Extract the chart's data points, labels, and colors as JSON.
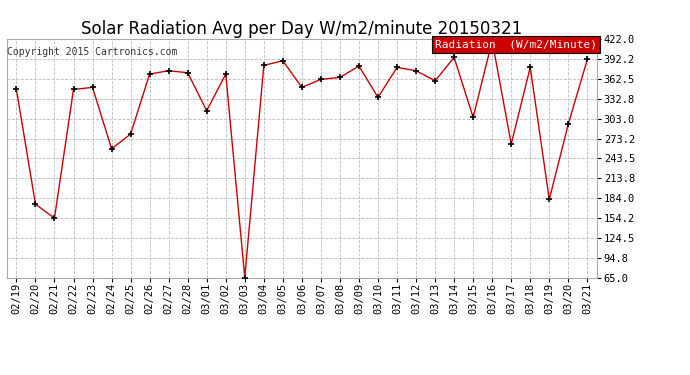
{
  "title": "Solar Radiation Avg per Day W/m2/minute 20150321",
  "copyright": "Copyright 2015 Cartronics.com",
  "legend_label": "Radiation  (W/m2/Minute)",
  "x_labels": [
    "02/19",
    "02/20",
    "02/21",
    "02/22",
    "02/23",
    "02/24",
    "02/25",
    "02/26",
    "02/27",
    "02/28",
    "03/01",
    "03/02",
    "03/03",
    "03/04",
    "03/05",
    "03/06",
    "03/07",
    "03/08",
    "03/09",
    "03/10",
    "03/11",
    "03/12",
    "03/13",
    "03/14",
    "03/15",
    "03/16",
    "03/17",
    "03/18",
    "03/19",
    "03/20",
    "03/21"
  ],
  "y_values": [
    347,
    175,
    154,
    347,
    350,
    258,
    280,
    370,
    375,
    372,
    315,
    370,
    65,
    383,
    390,
    350,
    362,
    365,
    382,
    335,
    380,
    375,
    360,
    395,
    305,
    420,
    265,
    380,
    182,
    295,
    392
  ],
  "y_ticks": [
    65.0,
    94.8,
    124.5,
    154.2,
    184.0,
    213.8,
    243.5,
    273.2,
    303.0,
    332.8,
    362.5,
    392.2,
    422.0
  ],
  "ylim": [
    65.0,
    422.0
  ],
  "line_color": "#cc0000",
  "marker_color": "#000000",
  "background_color": "#ffffff",
  "plot_bg_color": "#ffffff",
  "grid_color": "#bbbbbb",
  "title_fontsize": 12,
  "tick_fontsize": 7.5,
  "copyright_fontsize": 7,
  "legend_fontsize": 8,
  "legend_bg_color": "#cc0000",
  "legend_text_color": "#ffffff"
}
